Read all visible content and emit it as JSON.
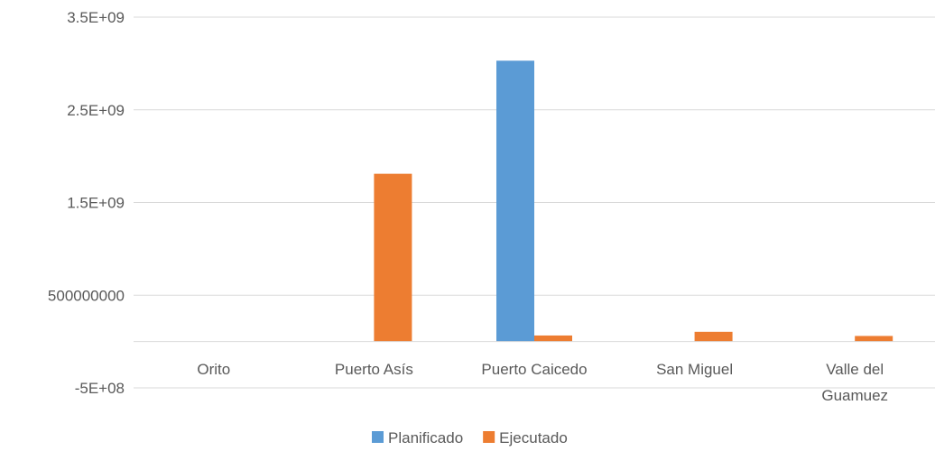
{
  "chart_data": {
    "type": "bar",
    "categories": [
      "Orito",
      "Puerto Asís",
      "Puerto Caicedo",
      "San Miguel",
      "Valle del Guamuez"
    ],
    "category_label_lines": [
      [
        "Orito"
      ],
      [
        "Puerto Asís"
      ],
      [
        "Puerto Caicedo"
      ],
      [
        "San Miguel"
      ],
      [
        "Valle del",
        "Guamuez"
      ]
    ],
    "series": [
      {
        "name": "Planificado",
        "color": "#5B9BD5",
        "values": [
          0,
          0,
          3030000000,
          0,
          0
        ]
      },
      {
        "name": "Ejecutado",
        "color": "#ED7D31",
        "values": [
          0,
          1810000000,
          65000000,
          105000000,
          60000000
        ]
      }
    ],
    "ylim": [
      -500000000,
      3500000000
    ],
    "y_ticks": [
      3500000000,
      2500000000,
      1500000000,
      500000000,
      -500000000
    ],
    "y_tick_labels": [
      "3.5E+09",
      "2.5E+09",
      "1.5E+09",
      "500000000",
      "-5E+08"
    ],
    "grid": true,
    "legend_position": "bottom",
    "title": "",
    "xlabel": "",
    "ylabel": ""
  }
}
